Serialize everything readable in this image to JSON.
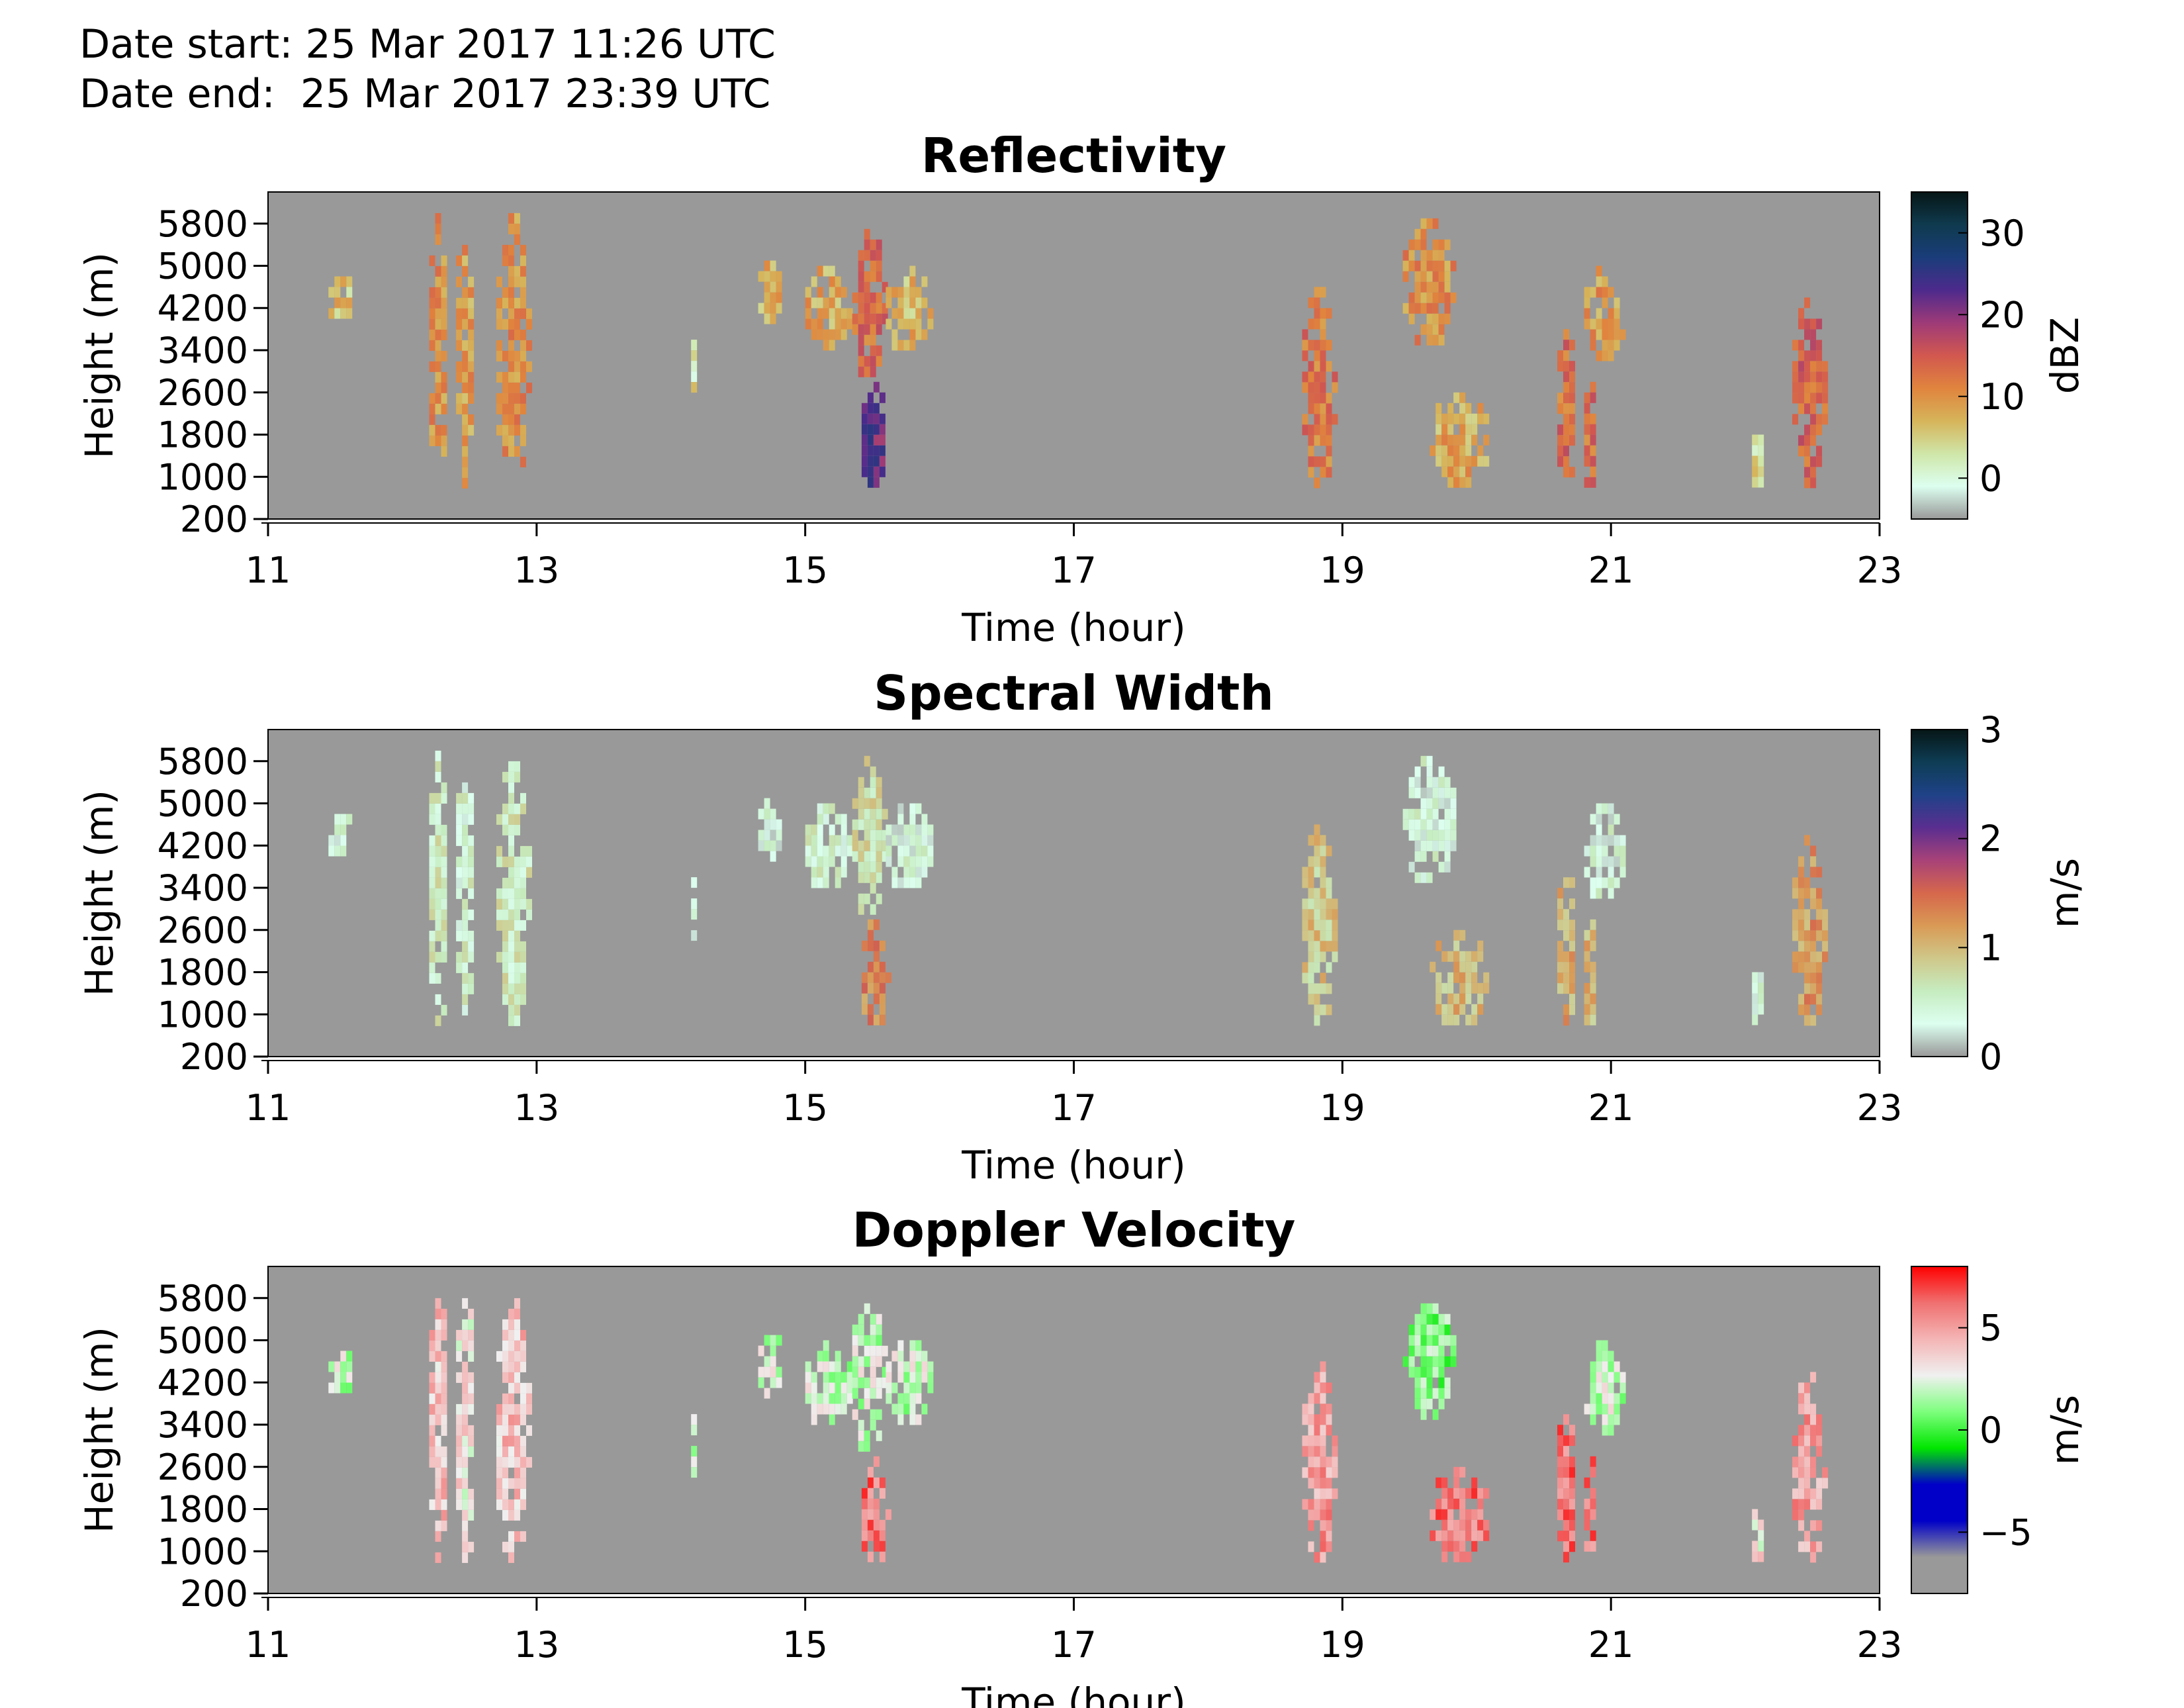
{
  "header": {
    "date_start": "Date start: 25 Mar 2017 11:26 UTC",
    "date_end": "Date end:  25 Mar 2017 23:39 UTC"
  },
  "colors": {
    "background_field": "#999999",
    "axis": "#000000"
  },
  "chart_data": [
    {
      "type": "heatmap",
      "title": "Reflectivity",
      "xlabel": "Time (hour)",
      "ylabel": "Height (m)",
      "xlim": [
        11,
        23
      ],
      "ylim": [
        200,
        6400
      ],
      "xticks": [
        11,
        13,
        15,
        17,
        19,
        21,
        23
      ],
      "yticks": [
        200,
        1000,
        1800,
        2600,
        3400,
        4200,
        5000,
        5800
      ],
      "colorbar": {
        "label": "dBZ",
        "range": [
          -5,
          35
        ],
        "ticks": [
          0,
          10,
          20,
          30
        ],
        "stops": [
          "#999999",
          "#dcfff0",
          "#cfe6a8",
          "#d6b45a",
          "#e0843e",
          "#d2584f",
          "#9e3a78",
          "#4d2a8c",
          "#1a3d7a",
          "#0f3a4e",
          "#061616"
        ]
      },
      "echoes": [
        {
          "t": [
            11.45,
            11.65
          ],
          "h": [
            3900,
            4800
          ],
          "v": 6
        },
        {
          "t": [
            12.2,
            12.35
          ],
          "h": [
            700,
            6000
          ],
          "v": 10
        },
        {
          "t": [
            12.4,
            12.55
          ],
          "h": [
            700,
            6000
          ],
          "v": 9
        },
        {
          "t": [
            12.7,
            12.95
          ],
          "h": [
            700,
            6000
          ],
          "v": 10
        },
        {
          "t": [
            14.15,
            14.2
          ],
          "h": [
            2400,
            3600
          ],
          "v": 3
        },
        {
          "t": [
            14.65,
            14.85
          ],
          "h": [
            3900,
            5100
          ],
          "v": 7
        },
        {
          "t": [
            15.0,
            15.35
          ],
          "h": [
            3300,
            5000
          ],
          "v": 8
        },
        {
          "t": [
            15.35,
            15.6
          ],
          "h": [
            2800,
            5900
          ],
          "v": 13
        },
        {
          "t": [
            15.42,
            15.62
          ],
          "h": [
            700,
            2800
          ],
          "v": 22
        },
        {
          "t": [
            15.6,
            15.95
          ],
          "h": [
            3300,
            5000
          ],
          "v": 7
        },
        {
          "t": [
            18.7,
            18.95
          ],
          "h": [
            700,
            4600
          ],
          "v": 12
        },
        {
          "t": [
            19.45,
            19.85
          ],
          "h": [
            3400,
            5900
          ],
          "v": 10
        },
        {
          "t": [
            19.65,
            20.1
          ],
          "h": [
            700,
            2600
          ],
          "v": 8
        },
        {
          "t": [
            20.6,
            20.75
          ],
          "h": [
            700,
            3800
          ],
          "v": 13
        },
        {
          "t": [
            20.8,
            21.1
          ],
          "h": [
            3100,
            5000
          ],
          "v": 9
        },
        {
          "t": [
            20.8,
            20.9
          ],
          "h": [
            700,
            2800
          ],
          "v": 13
        },
        {
          "t": [
            22.05,
            22.15
          ],
          "h": [
            700,
            1800
          ],
          "v": 4
        },
        {
          "t": [
            22.35,
            22.6
          ],
          "h": [
            700,
            4400
          ],
          "v": 14
        }
      ]
    },
    {
      "type": "heatmap",
      "title": "Spectral Width",
      "xlabel": "Time (hour)",
      "ylabel": "Height (m)",
      "xlim": [
        11,
        23
      ],
      "ylim": [
        200,
        6400
      ],
      "xticks": [
        11,
        13,
        15,
        17,
        19,
        21,
        23
      ],
      "yticks": [
        200,
        1000,
        1800,
        2600,
        3400,
        4200,
        5000,
        5800
      ],
      "colorbar": {
        "label": "m/s",
        "range": [
          0,
          3
        ],
        "ticks": [
          0,
          1,
          2,
          3
        ],
        "stops": [
          "#999999",
          "#dcfff0",
          "#c6ecc0",
          "#cfc88a",
          "#d99a55",
          "#d6674c",
          "#a84278",
          "#5a2e90",
          "#1f4287",
          "#0e3d55",
          "#061616"
        ]
      },
      "echoes": [
        {
          "t": [
            11.45,
            11.65
          ],
          "h": [
            3900,
            4800
          ],
          "v": 0.4
        },
        {
          "t": [
            12.2,
            12.35
          ],
          "h": [
            700,
            6000
          ],
          "v": 0.6
        },
        {
          "t": [
            12.4,
            12.55
          ],
          "h": [
            700,
            6000
          ],
          "v": 0.5
        },
        {
          "t": [
            12.7,
            12.95
          ],
          "h": [
            700,
            6000
          ],
          "v": 0.6
        },
        {
          "t": [
            14.15,
            14.2
          ],
          "h": [
            2400,
            3600
          ],
          "v": 0.3
        },
        {
          "t": [
            14.65,
            14.85
          ],
          "h": [
            3900,
            5100
          ],
          "v": 0.4
        },
        {
          "t": [
            15.0,
            15.35
          ],
          "h": [
            3300,
            5000
          ],
          "v": 0.5
        },
        {
          "t": [
            15.35,
            15.6
          ],
          "h": [
            2800,
            5900
          ],
          "v": 0.7
        },
        {
          "t": [
            15.42,
            15.62
          ],
          "h": [
            700,
            2800
          ],
          "v": 1.3
        },
        {
          "t": [
            15.6,
            15.95
          ],
          "h": [
            3300,
            5000
          ],
          "v": 0.4
        },
        {
          "t": [
            18.7,
            18.95
          ],
          "h": [
            700,
            4600
          ],
          "v": 0.9
        },
        {
          "t": [
            19.45,
            19.85
          ],
          "h": [
            3400,
            5900
          ],
          "v": 0.4
        },
        {
          "t": [
            19.65,
            20.1
          ],
          "h": [
            700,
            2600
          ],
          "v": 1.0
        },
        {
          "t": [
            20.6,
            20.75
          ],
          "h": [
            700,
            3800
          ],
          "v": 1.1
        },
        {
          "t": [
            20.8,
            21.1
          ],
          "h": [
            3100,
            5000
          ],
          "v": 0.4
        },
        {
          "t": [
            20.8,
            20.9
          ],
          "h": [
            700,
            2800
          ],
          "v": 1.0
        },
        {
          "t": [
            22.05,
            22.15
          ],
          "h": [
            700,
            1800
          ],
          "v": 0.4
        },
        {
          "t": [
            22.35,
            22.6
          ],
          "h": [
            700,
            4400
          ],
          "v": 1.2
        }
      ]
    },
    {
      "type": "heatmap",
      "title": "Doppler Velocity",
      "xlabel": "Time (hour)",
      "ylabel": "Height (m)",
      "xlim": [
        11,
        23
      ],
      "ylim": [
        200,
        6400
      ],
      "xticks": [
        11,
        13,
        15,
        17,
        19,
        21,
        23
      ],
      "yticks": [
        200,
        1000,
        1800,
        2600,
        3400,
        4200,
        5000,
        5800
      ],
      "colorbar": {
        "label": "m/s",
        "range": [
          -8,
          8
        ],
        "ticks": [
          -5,
          0,
          5
        ],
        "stops": [
          "#999999",
          "#999999",
          "#0000c8",
          "#0000c8",
          "#00e600",
          "#7dff7d",
          "#f0f0f0",
          "#f4b5b5",
          "#f07070",
          "#ff0000"
        ]
      },
      "echoes": [
        {
          "t": [
            11.45,
            11.65
          ],
          "h": [
            3900,
            4800
          ],
          "v": 2
        },
        {
          "t": [
            12.2,
            12.35
          ],
          "h": [
            700,
            6000
          ],
          "v": 4
        },
        {
          "t": [
            12.4,
            12.55
          ],
          "h": [
            700,
            6000
          ],
          "v": 3
        },
        {
          "t": [
            12.7,
            12.95
          ],
          "h": [
            700,
            6000
          ],
          "v": 4
        },
        {
          "t": [
            14.15,
            14.2
          ],
          "h": [
            2400,
            3600
          ],
          "v": 2
        },
        {
          "t": [
            14.65,
            14.85
          ],
          "h": [
            3900,
            5100
          ],
          "v": 2
        },
        {
          "t": [
            15.0,
            15.35
          ],
          "h": [
            3300,
            5000
          ],
          "v": 2
        },
        {
          "t": [
            15.35,
            15.6
          ],
          "h": [
            2800,
            5900
          ],
          "v": 2
        },
        {
          "t": [
            15.42,
            15.62
          ],
          "h": [
            700,
            2800
          ],
          "v": 6
        },
        {
          "t": [
            15.6,
            15.95
          ],
          "h": [
            3300,
            5000
          ],
          "v": 2
        },
        {
          "t": [
            18.7,
            18.95
          ],
          "h": [
            700,
            4600
          ],
          "v": 5
        },
        {
          "t": [
            19.45,
            19.85
          ],
          "h": [
            3400,
            5900
          ],
          "v": 1
        },
        {
          "t": [
            19.65,
            20.1
          ],
          "h": [
            700,
            2600
          ],
          "v": 6
        },
        {
          "t": [
            20.6,
            20.75
          ],
          "h": [
            700,
            3800
          ],
          "v": 6
        },
        {
          "t": [
            20.8,
            21.1
          ],
          "h": [
            3100,
            5000
          ],
          "v": 2
        },
        {
          "t": [
            20.8,
            20.9
          ],
          "h": [
            700,
            2800
          ],
          "v": 6
        },
        {
          "t": [
            22.05,
            22.15
          ],
          "h": [
            700,
            1800
          ],
          "v": 3
        },
        {
          "t": [
            22.35,
            22.6
          ],
          "h": [
            700,
            4400
          ],
          "v": 5
        }
      ]
    }
  ]
}
